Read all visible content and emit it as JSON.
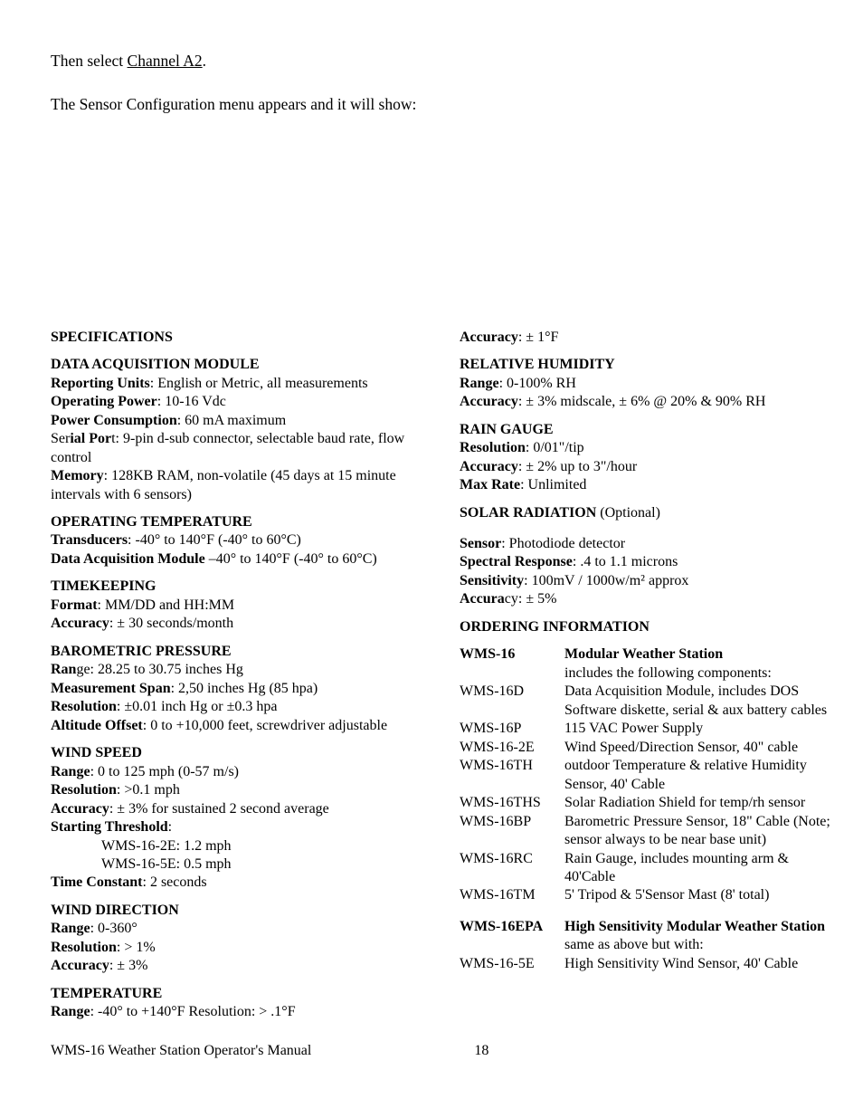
{
  "intro": {
    "line1_pre": "Then select ",
    "line1_link": "Channel A2",
    "line1_post": ".",
    "line2": "The Sensor Configuration menu appears and it will show:"
  },
  "left": {
    "specsHeader": "SPECIFICATIONS",
    "dam": {
      "title": "DATA ACQUISITION MODULE",
      "reportingLabel": "Reporting Units",
      "reporting": ": English or Metric, all measurements",
      "opPowerLabel": "Operating Power",
      "opPower": ": 10-16 Vdc",
      "pcLabel": "Power Consumption",
      "pc": ": 60 mA maximum",
      "serPre": "Ser",
      "serMid": "ial Por",
      "serPost": "t: 9-pin d-sub connector, selectable baud rate, flow control",
      "memLabel": "Memory",
      "mem": ": 128KB RAM, non-volatile (45 days at 15 minute intervals with 6 sensors)"
    },
    "optemp": {
      "title": "OPERATING TEMPERATURE",
      "transLabel": "Transducers",
      "trans": ": -40° to 140°F (-40° to 60°C)",
      "damLabel": "Data Acquisition Module",
      "dam": " –40° to 140°F (-40° to 60°C)"
    },
    "time": {
      "title": "TIMEKEEPING",
      "fmtLabel": "Format",
      "fmt": ": MM/DD and HH:MM",
      "accLabel": "Accuracy",
      "acc": ": ± 30 seconds/month"
    },
    "baro": {
      "title": "BAROMETRIC PRESSURE",
      "ranBold": "Ran",
      "ranRest": "ge: 28.25 to 30.75 inches Hg",
      "spanLabel": "Measurement Span",
      "span": ": 2,50 inches Hg (85 hpa)",
      "resLabel": "Resolution",
      "res": ": ±0.01 inch Hg or ±0.3 hpa",
      "altLabel": "Altitude Offset",
      "alt": ": 0 to +10,000 feet, screwdriver adjustable"
    },
    "wspeed": {
      "title": "WIND SPEED",
      "rangeLabel": "Range",
      "range": ": 0 to 125 mph (0-57 m/s)",
      "resLabel": "Resolution",
      "res": ": >0.1 mph",
      "accLabel": "Accuracy",
      "acc": ": ± 3% for sustained 2 second average",
      "stLabel": "Starting Threshold",
      "stPost": ":",
      "st1": "WMS-16-2E: 1.2 mph",
      "st2": "WMS-16-5E: 0.5 mph",
      "tcLabel": "Time Constant",
      "tc": ": 2 seconds"
    },
    "wdir": {
      "title": "WIND DIRECTION",
      "rangeLabel": "Range",
      "range": ": 0-360°",
      "resLabel": "Resolution",
      "res": ": > 1%",
      "accLabel": "Accuracy",
      "acc": ": ± 3%"
    },
    "temp": {
      "title": "TEMPERATURE",
      "rangeLabel": "Range",
      "range": ": -40° to +140°F Resolution: > .1°F"
    }
  },
  "right": {
    "acc1Label": "Accuracy",
    "acc1": ": ± 1°F",
    "rh": {
      "title": "RELATIVE HUMIDITY",
      "rangeLabel": "Range",
      "range": ": 0-100% RH",
      "accLabel": "Accuracy",
      "acc": ": ± 3% midscale, ± 6% @ 20% & 90% RH"
    },
    "rain": {
      "title": "RAIN GAUGE",
      "resLabel": "Resolution",
      "res": ": 0/01\"/tip",
      "accLabel": "Accuracy",
      "acc": ": ± 2% up to 3\"/hour",
      "maxLabel": "Max Rate",
      "max": ": Unlimited"
    },
    "solar": {
      "titleBold": "SOLAR RADIATION",
      "titleRest": " (Optional)",
      "sensorLabel": "Sensor",
      "sensor": ": Photodiode detector",
      "specLabel": "Spectral Response",
      "spec": ": .4 to 1.1 microns",
      "sensLabel": "Sensitivity",
      "sens": ": 100mV / 1000w/m² approx",
      "accBold": "Accura",
      "accRest": "cy: ± 5%"
    },
    "orderHeader": "ORDERING INFORMATION",
    "rows": [
      {
        "code": "WMS-16",
        "boldCode": true,
        "desc": "Modular Weather Station",
        "boldDesc": true
      },
      {
        "code": "",
        "desc": "includes the following components:"
      },
      {
        "code": "WMS-16D",
        "desc": "Data Acquisition Module, includes DOS Software diskette, serial & aux battery cables"
      },
      {
        "code": "WMS-16P",
        "desc": "115 VAC Power Supply"
      },
      {
        "code": "WMS-16-2E",
        "desc": "Wind Speed/Direction Sensor, 40\" cable"
      },
      {
        "code": "WMS-16TH",
        "desc": "outdoor Temperature & relative Humidity Sensor, 40' Cable"
      },
      {
        "code": "WMS-16THS",
        "desc": "Solar Radiation Shield for temp/rh sensor"
      },
      {
        "code": "WMS-16BP",
        "desc": "Barometric Pressure Sensor, 18\" Cable (Note; sensor always to be near base unit)"
      },
      {
        "code": "WMS-16RC",
        "desc": "Rain Gauge, includes mounting arm & 40'Cable"
      },
      {
        "code": "WMS-16TM",
        "desc": " 5' Tripod & 5'Sensor Mast (8' total)"
      },
      {
        "gap": true
      },
      {
        "code": "WMS-16EPA",
        "boldCode": true,
        "desc": "High Sensitivity Modular Weather Station",
        "boldDesc": true
      },
      {
        "code": "",
        "desc": "same as above but with:"
      },
      {
        "code": "WMS-16-5E",
        "desc": "High Sensitivity Wind Sensor, 40' Cable"
      }
    ]
  },
  "footer": {
    "left": "WMS-16 Weather Station Operator's Manual",
    "page": "18"
  }
}
